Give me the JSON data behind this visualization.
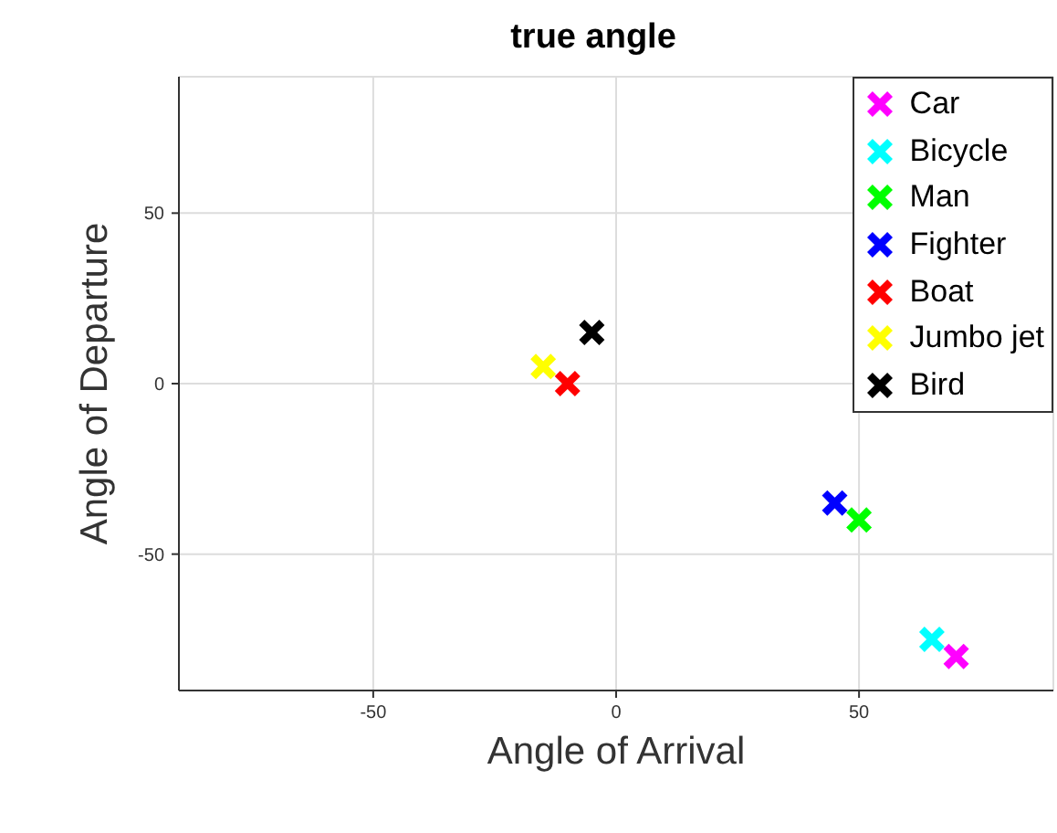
{
  "chart_data": {
    "type": "scatter",
    "title": "true angle",
    "xlabel": "Angle of Arrival",
    "ylabel": "Angle of Departure",
    "xlim": [
      -90,
      90
    ],
    "ylim": [
      -90,
      90
    ],
    "xticks": [
      -50,
      0,
      50
    ],
    "yticks": [
      -50,
      0,
      50
    ],
    "grid": true,
    "legend": "top right",
    "marker": "cross",
    "series": [
      {
        "name": "Car",
        "color": "#ff00ff",
        "x": [
          70
        ],
        "values": [
          -80
        ]
      },
      {
        "name": "Bicycle",
        "color": "#00ffff",
        "x": [
          65
        ],
        "values": [
          -75
        ]
      },
      {
        "name": "Man",
        "color": "#00ff00",
        "x": [
          50
        ],
        "values": [
          -40
        ]
      },
      {
        "name": "Fighter",
        "color": "#0000ff",
        "x": [
          45
        ],
        "values": [
          -35
        ]
      },
      {
        "name": "Boat",
        "color": "#ff0000",
        "x": [
          -10
        ],
        "values": [
          0
        ]
      },
      {
        "name": "Jumbo jet",
        "color": "#ffff00",
        "x": [
          -15
        ],
        "values": [
          5
        ]
      },
      {
        "name": "Bird",
        "color": "#000000",
        "x": [
          -5
        ],
        "values": [
          15
        ]
      }
    ]
  }
}
